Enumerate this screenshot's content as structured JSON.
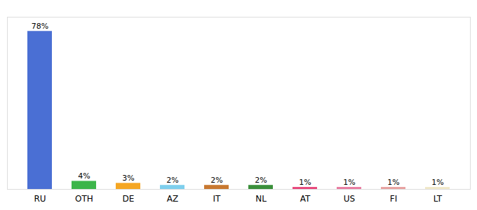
{
  "chart_data": {
    "type": "bar",
    "categories": [
      "RU",
      "OTH",
      "DE",
      "AZ",
      "IT",
      "NL",
      "AT",
      "US",
      "FI",
      "LT"
    ],
    "values": [
      78,
      4,
      3,
      2,
      2,
      2,
      1,
      1,
      1,
      1
    ],
    "value_labels": [
      "78%",
      "4%",
      "3%",
      "2%",
      "2%",
      "2%",
      "1%",
      "1%",
      "1%",
      "1%"
    ],
    "colors": [
      "#4a6fd4",
      "#3cb54a",
      "#f5a623",
      "#7ecfed",
      "#c87830",
      "#3a8f3a",
      "#e8457a",
      "#e87a9f",
      "#e8a09f",
      "#f0e8c8"
    ],
    "ylim": [
      0,
      85
    ],
    "data_labels": true,
    "tick_labels": "x"
  }
}
